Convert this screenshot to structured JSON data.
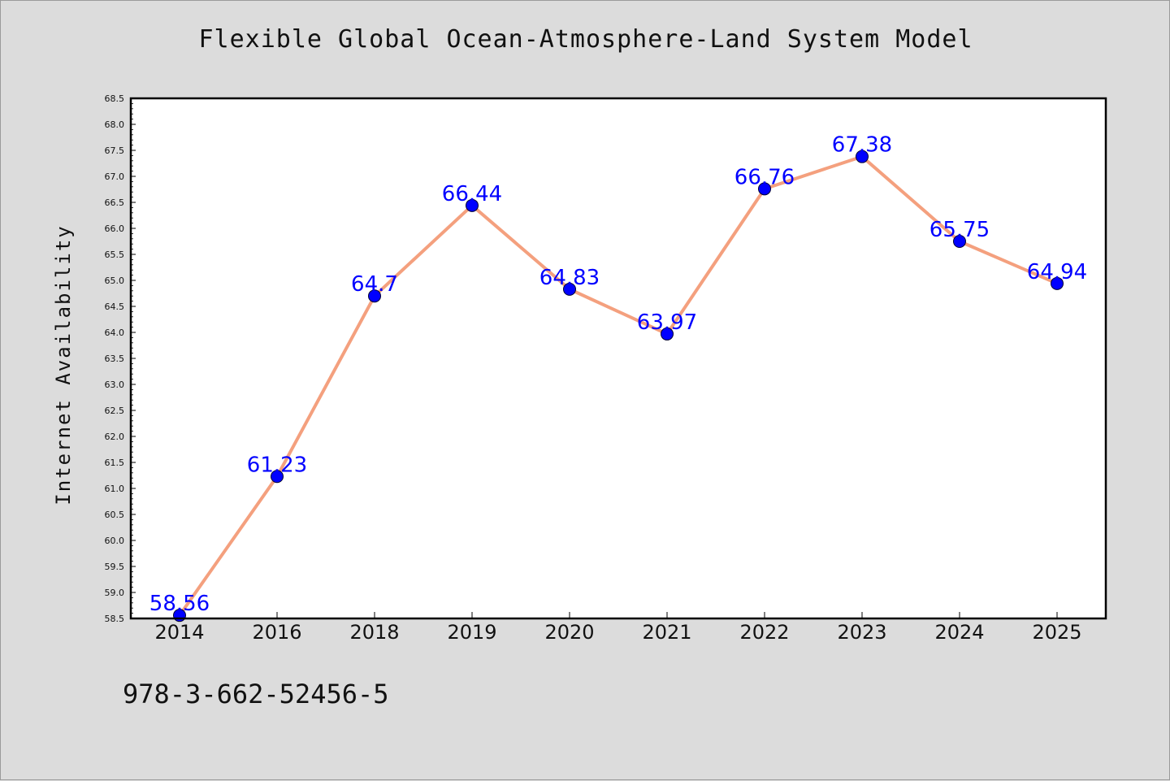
{
  "chart_data": {
    "type": "line",
    "title": "Flexible Global Ocean-Atmosphere-Land System Model",
    "xlabel": "",
    "ylabel": "Internet Availability",
    "categories": [
      "2014",
      "2016",
      "2018",
      "2019",
      "2020",
      "2021",
      "2022",
      "2023",
      "2024",
      "2025"
    ],
    "series": [
      {
        "values": [
          58.56,
          61.23,
          64.7,
          66.44,
          64.83,
          63.97,
          66.76,
          67.38,
          65.75,
          64.94
        ],
        "data_labels": [
          "58.56",
          "61.23",
          "64.7",
          "66.44",
          "64.83",
          "63.97",
          "66.76",
          "67.38",
          "65.75",
          "64.94"
        ]
      }
    ],
    "ylim": [
      58.5,
      68.5
    ],
    "yticks": [
      "58.5",
      "59.0",
      "59.5",
      "60.0",
      "60.5",
      "61.0",
      "61.5",
      "62.0",
      "62.5",
      "63.0",
      "63.5",
      "64.0",
      "64.5",
      "65.0",
      "65.5",
      "66.0",
      "66.5",
      "67.0",
      "67.5",
      "68.0",
      "68.5"
    ],
    "grid": false,
    "legend": "none",
    "colors": {
      "line": "#f4a07e",
      "marker": "#0000ff",
      "data_label": "#0000ff",
      "plot_bg": "#ffffff",
      "figure_bg": "#dcdcdc"
    }
  },
  "footer": {
    "code": "978-3-662-52456-5"
  }
}
